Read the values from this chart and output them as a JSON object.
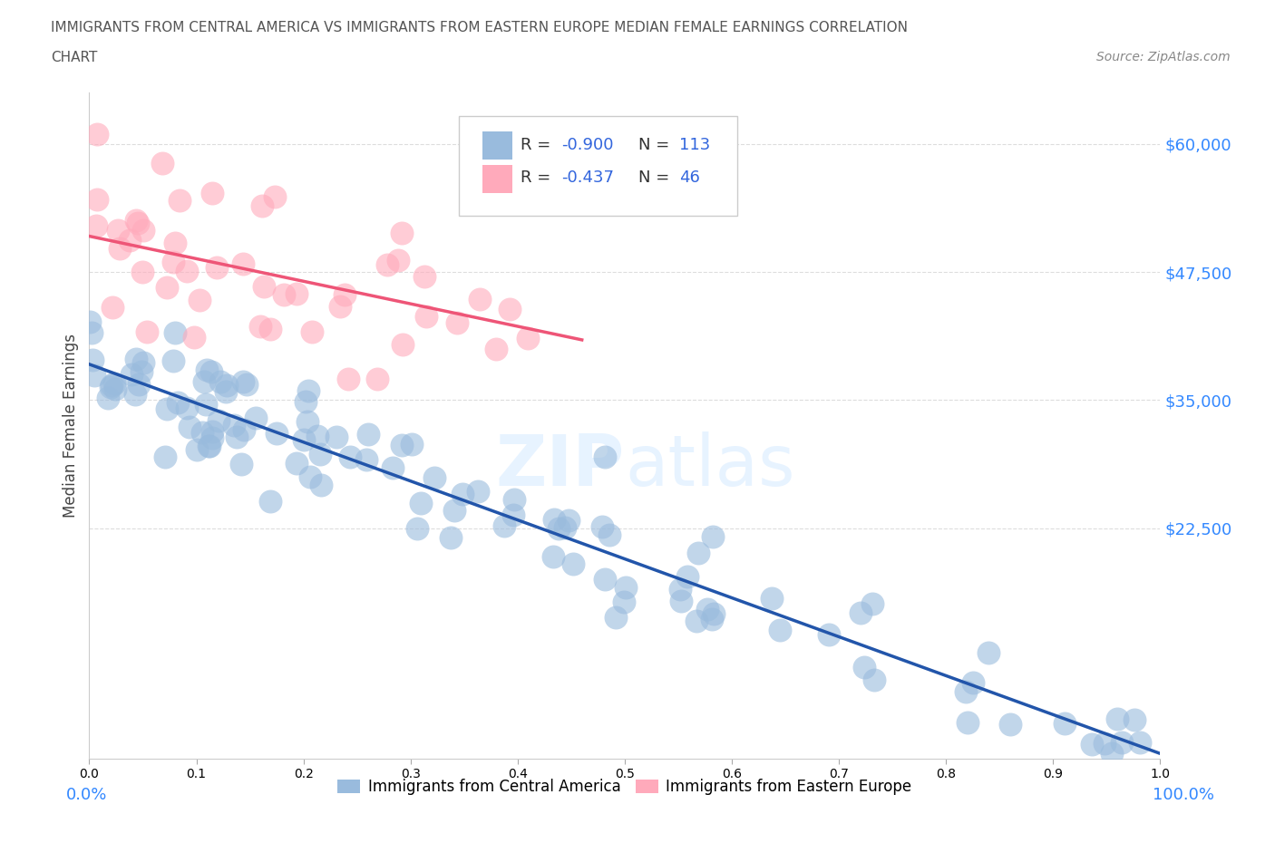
{
  "title_line1": "IMMIGRANTS FROM CENTRAL AMERICA VS IMMIGRANTS FROM EASTERN EUROPE MEDIAN FEMALE EARNINGS CORRELATION",
  "title_line2": "CHART",
  "source": "Source: ZipAtlas.com",
  "ylabel": "Median Female Earnings",
  "xmin": 0.0,
  "xmax": 1.0,
  "ymin": 0,
  "ymax": 65000,
  "r_blue": -0.9,
  "n_blue": 113,
  "r_pink": -0.437,
  "n_pink": 46,
  "color_blue": "#99BBDD",
  "color_pink": "#FFAABB",
  "color_trendline_blue": "#2255AA",
  "color_trendline_pink": "#EE5577",
  "color_trendline_gray": "#CCCCCC",
  "legend_label_blue": "Immigrants from Central America",
  "legend_label_pink": "Immigrants from Eastern Europe",
  "intercept_blue": 38500,
  "slope_blue": -38000,
  "intercept_pink": 51000,
  "slope_pink": -22000,
  "seed_blue": 12,
  "seed_pink": 7
}
